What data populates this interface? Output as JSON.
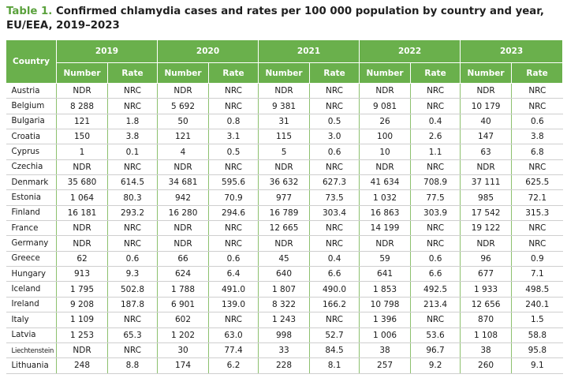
{
  "caption": {
    "label": "Table 1.",
    "title": "Confirmed chlamydia cases and rates per 100 000 population by country and year, EU/EEA, 2019–2023"
  },
  "header": {
    "country": "Country",
    "years": [
      "2019",
      "2020",
      "2021",
      "2022",
      "2023"
    ],
    "sub": [
      "Number",
      "Rate"
    ]
  },
  "rows": [
    {
      "country": "Austria",
      "values": [
        "NDR",
        "NRC",
        "NDR",
        "NRC",
        "NDR",
        "NRC",
        "NDR",
        "NRC",
        "NDR",
        "NRC"
      ]
    },
    {
      "country": "Belgium",
      "values": [
        "8 288",
        "NRC",
        "5 692",
        "NRC",
        "9 381",
        "NRC",
        "9 081",
        "NRC",
        "10 179",
        "NRC"
      ]
    },
    {
      "country": "Bulgaria",
      "values": [
        "121",
        "1.8",
        "50",
        "0.8",
        "31",
        "0.5",
        "26",
        "0.4",
        "40",
        "0.6"
      ]
    },
    {
      "country": "Croatia",
      "values": [
        "150",
        "3.8",
        "121",
        "3.1",
        "115",
        "3.0",
        "100",
        "2.6",
        "147",
        "3.8"
      ]
    },
    {
      "country": "Cyprus",
      "values": [
        "1",
        "0.1",
        "4",
        "0.5",
        "5",
        "0.6",
        "10",
        "1.1",
        "63",
        "6.8"
      ]
    },
    {
      "country": "Czechia",
      "values": [
        "NDR",
        "NRC",
        "NDR",
        "NRC",
        "NDR",
        "NRC",
        "NDR",
        "NRC",
        "NDR",
        "NRC"
      ]
    },
    {
      "country": "Denmark",
      "values": [
        "35 680",
        "614.5",
        "34 681",
        "595.6",
        "36 632",
        "627.3",
        "41 634",
        "708.9",
        "37 111",
        "625.5"
      ]
    },
    {
      "country": "Estonia",
      "values": [
        "1 064",
        "80.3",
        "942",
        "70.9",
        "977",
        "73.5",
        "1 032",
        "77.5",
        "985",
        "72.1"
      ]
    },
    {
      "country": "Finland",
      "values": [
        "16 181",
        "293.2",
        "16 280",
        "294.6",
        "16 789",
        "303.4",
        "16 863",
        "303.9",
        "17 542",
        "315.3"
      ]
    },
    {
      "country": "France",
      "values": [
        "NDR",
        "NRC",
        "NDR",
        "NRC",
        "12 665",
        "NRC",
        "14 199",
        "NRC",
        "19 122",
        "NRC"
      ]
    },
    {
      "country": "Germany",
      "values": [
        "NDR",
        "NRC",
        "NDR",
        "NRC",
        "NDR",
        "NRC",
        "NDR",
        "NRC",
        "NDR",
        "NRC"
      ]
    },
    {
      "country": "Greece",
      "values": [
        "62",
        "0.6",
        "66",
        "0.6",
        "45",
        "0.4",
        "59",
        "0.6",
        "96",
        "0.9"
      ]
    },
    {
      "country": "Hungary",
      "values": [
        "913",
        "9.3",
        "624",
        "6.4",
        "640",
        "6.6",
        "641",
        "6.6",
        "677",
        "7.1"
      ]
    },
    {
      "country": "Iceland",
      "values": [
        "1 795",
        "502.8",
        "1 788",
        "491.0",
        "1 807",
        "490.0",
        "1 853",
        "492.5",
        "1 933",
        "498.5"
      ]
    },
    {
      "country": "Ireland",
      "values": [
        "9 208",
        "187.8",
        "6 901",
        "139.0",
        "8 322",
        "166.2",
        "10 798",
        "213.4",
        "12 656",
        "240.1"
      ]
    },
    {
      "country": "Italy",
      "values": [
        "1 109",
        "NRC",
        "602",
        "NRC",
        "1 243",
        "NRC",
        "1 396",
        "NRC",
        "870",
        "1.5"
      ]
    },
    {
      "country": "Latvia",
      "values": [
        "1 253",
        "65.3",
        "1 202",
        "63.0",
        "998",
        "52.7",
        "1 006",
        "53.6",
        "1 108",
        "58.8"
      ]
    },
    {
      "country": "Liechtenstein",
      "values": [
        "NDR",
        "NRC",
        "30",
        "77.4",
        "33",
        "84.5",
        "38",
        "96.7",
        "38",
        "95.8"
      ]
    },
    {
      "country": "Lithuania",
      "values": [
        "248",
        "8.8",
        "174",
        "6.2",
        "228",
        "8.1",
        "257",
        "9.2",
        "260",
        "9.1"
      ]
    }
  ]
}
